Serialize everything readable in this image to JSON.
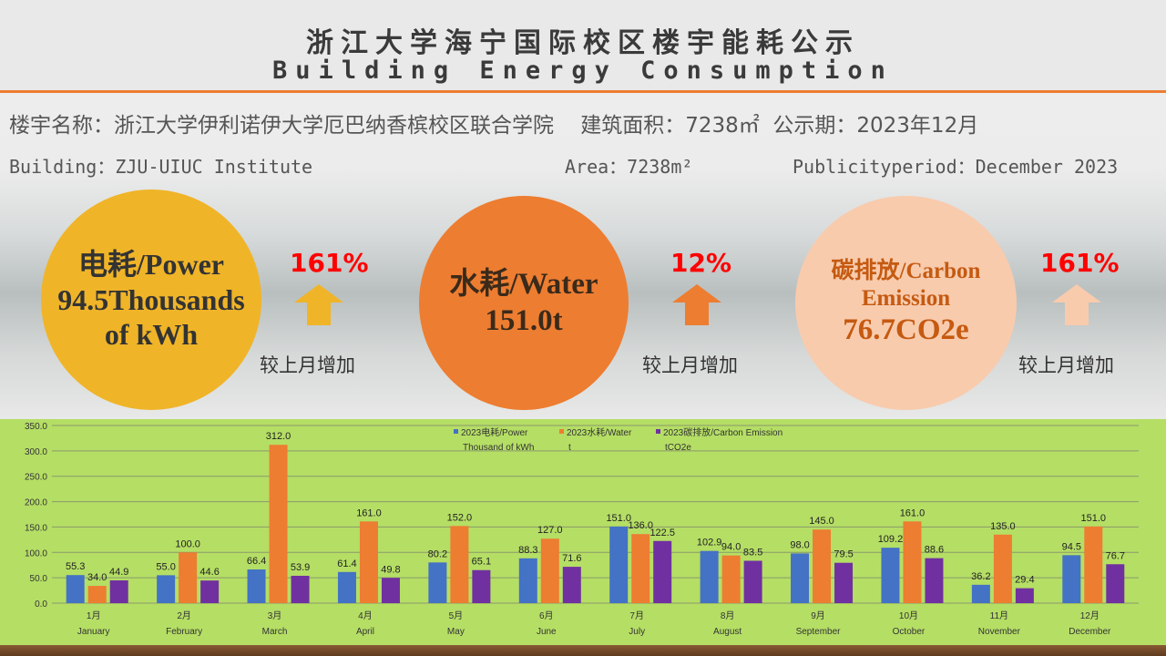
{
  "header": {
    "title_cn": "浙江大学海宁国际校区楼宇能耗公示",
    "title_en": "Building Energy Consumption"
  },
  "info": {
    "cn_line": "楼宇名称：浙江大学伊利诺伊大学厄巴纳香槟校区联合学院    建筑面积：7238㎡  公示期：2023年12月",
    "building_en": "Building：ZJU-UIUC Institute",
    "area_en": "Area：7238m²",
    "period_en": "Publicityperiod：December 2023"
  },
  "cards": [
    {
      "title": "电耗/Power",
      "value": "94.5Thousands of kWh",
      "change": "161%",
      "compare": "较上月增加",
      "color": "#f0b428"
    },
    {
      "title": "水耗/Water",
      "value": "151.0t",
      "change": "12%",
      "compare": "较上月增加",
      "color": "#ed7d31"
    },
    {
      "title": "碳排放/Carbon Emission",
      "value": "76.7CO2e",
      "change": "161%",
      "compare": "较上月增加",
      "color": "#f8cbad"
    }
  ],
  "chart_data": {
    "type": "bar",
    "categories": [
      "1月 January",
      "2月 February",
      "3月 March",
      "4月 April",
      "5月 May",
      "6月 June",
      "7月 July",
      "8月 August",
      "9月 September",
      "10月 October",
      "11月 November",
      "12月 December"
    ],
    "cat_cn": [
      "1月",
      "2月",
      "3月",
      "4月",
      "5月",
      "6月",
      "7月",
      "8月",
      "9月",
      "10月",
      "11月",
      "12月"
    ],
    "cat_en": [
      "January",
      "February",
      "March",
      "April",
      "May",
      "June",
      "July",
      "August",
      "September",
      "October",
      "November",
      "December"
    ],
    "series": [
      {
        "name": "2023电耗/Power Thousand of kWh",
        "l1": "2023电耗/Power",
        "l2": "Thousand of kWh",
        "color": "#4472c4",
        "values": [
          55.3,
          55.0,
          66.4,
          61.4,
          80.2,
          88.3,
          151.0,
          102.9,
          98.0,
          109.2,
          36.2,
          94.5
        ]
      },
      {
        "name": "2023水耗/Water t",
        "l1": "2023水耗/Water",
        "l2": "t",
        "color": "#ed7d31",
        "values": [
          34.0,
          100.0,
          312.0,
          161.0,
          152.0,
          127.0,
          136.0,
          94.0,
          145.0,
          161.0,
          135.0,
          151.0
        ]
      },
      {
        "name": "2023碳排放/Carbon Emission tCO2e",
        "l1": "2023碳排放/Carbon Emission",
        "l2": "tCO2e",
        "color": "#7030a0",
        "values": [
          44.9,
          44.6,
          53.9,
          49.8,
          65.1,
          71.6,
          122.5,
          83.5,
          79.5,
          88.6,
          29.4,
          76.7
        ]
      }
    ],
    "yticks": [
      "0.0",
      "50.0",
      "100.0",
      "150.0",
      "200.0",
      "250.0",
      "300.0",
      "350.0"
    ],
    "ylim": [
      0,
      350
    ],
    "grid": true,
    "legend": "top-center"
  }
}
